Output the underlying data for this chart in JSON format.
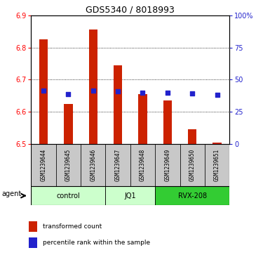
{
  "title": "GDS5340 / 8018993",
  "samples": [
    "GSM1239644",
    "GSM1239645",
    "GSM1239646",
    "GSM1239647",
    "GSM1239648",
    "GSM1239649",
    "GSM1239650",
    "GSM1239651"
  ],
  "bar_values": [
    6.825,
    6.625,
    6.855,
    6.745,
    6.655,
    6.635,
    6.545,
    6.505
  ],
  "bar_bottom": 6.5,
  "percentile_values": [
    6.665,
    6.655,
    6.665,
    6.663,
    6.66,
    6.66,
    6.658,
    6.653
  ],
  "ylim_left": [
    6.5,
    6.9
  ],
  "ylim_right": [
    0,
    100
  ],
  "yticks_left": [
    6.5,
    6.6,
    6.7,
    6.8,
    6.9
  ],
  "yticks_right": [
    0,
    25,
    50,
    75,
    100
  ],
  "ytick_right_labels": [
    "0",
    "25",
    "50",
    "75",
    "100%"
  ],
  "bar_color": "#cc2200",
  "blue_color": "#2222cc",
  "groups": [
    {
      "label": "control",
      "start": 0,
      "end": 3,
      "color": "#ccffcc"
    },
    {
      "label": "JQ1",
      "start": 3,
      "end": 5,
      "color": "#ccffcc"
    },
    {
      "label": "RVX-208",
      "start": 5,
      "end": 8,
      "color": "#33cc33"
    }
  ],
  "legend_red_label": "transformed count",
  "legend_blue_label": "percentile rank within the sample",
  "agent_label": "agent",
  "sample_bg": "#c8c8c8",
  "plot_bg": "#ffffff",
  "title_fontsize": 9,
  "tick_fontsize": 7,
  "sample_fontsize": 5.5,
  "group_fontsize": 7,
  "legend_fontsize": 6.5,
  "bar_width": 0.35
}
